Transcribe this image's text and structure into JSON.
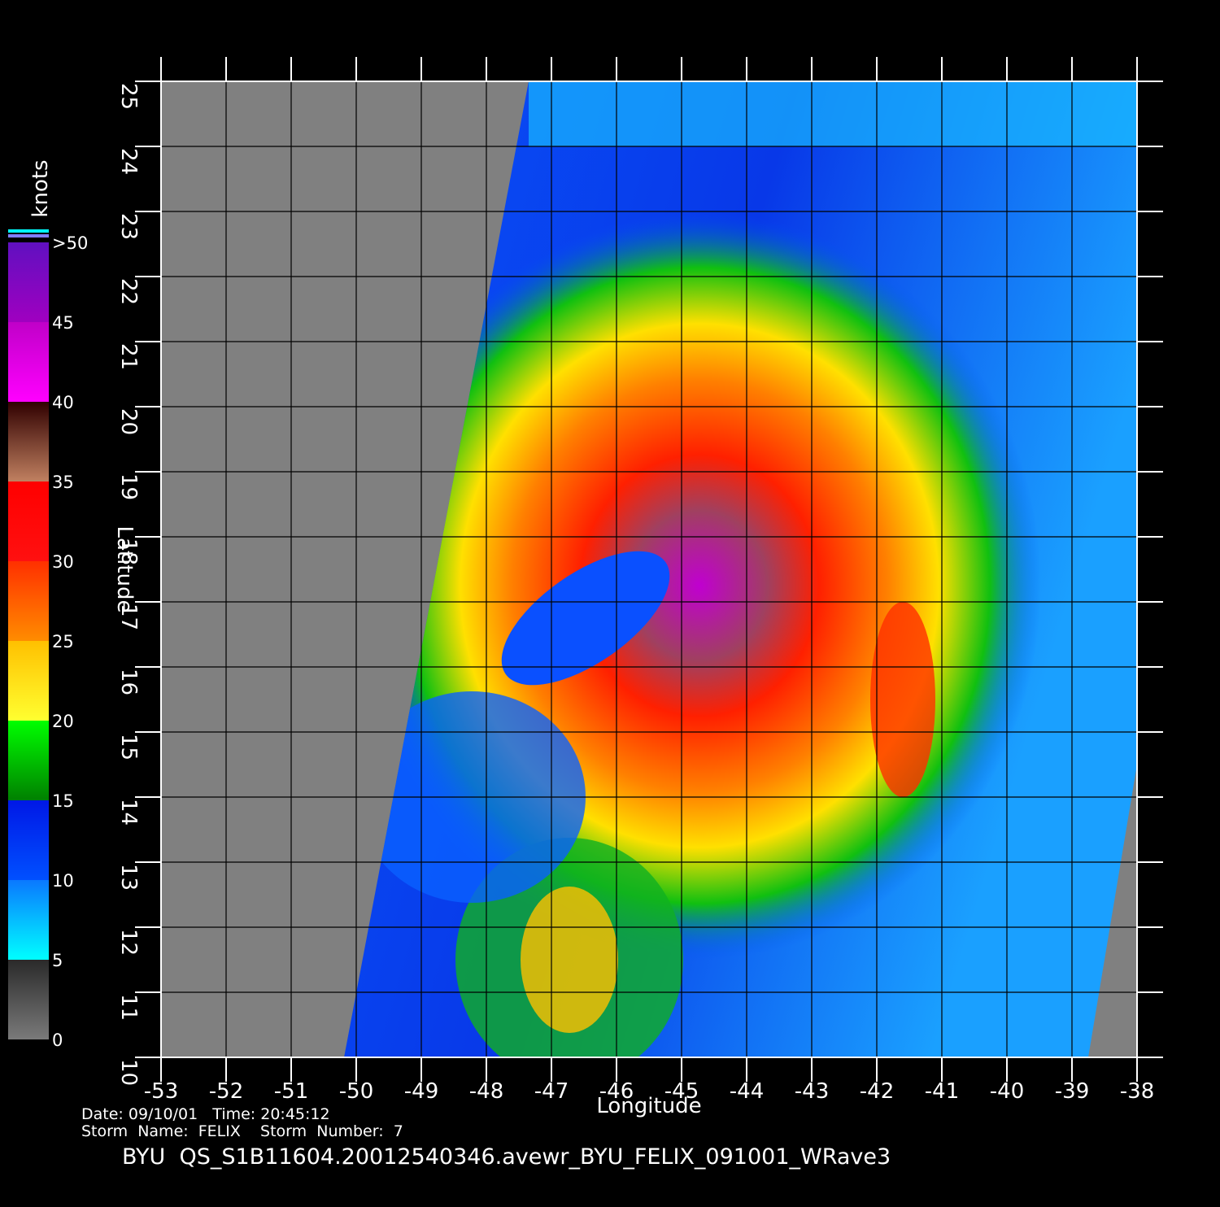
{
  "map": {
    "title": "BYU  QS_S1B11604.20012540346.avewr_BYU_FELIX_091001_WRave3",
    "info": [
      "Date: 09/10/01   Time: 20:45:12",
      "Storm  Name:  FELIX    Storm  Number:  7"
    ],
    "xlabel": "Longitude",
    "ylabel": "Latitude",
    "xlim": [
      -53,
      -38
    ],
    "ylim": [
      10,
      25
    ],
    "xticks": [
      -53,
      -52,
      -51,
      -50,
      -49,
      -48,
      -47,
      -46,
      -45,
      -44,
      -43,
      -42,
      -41,
      -40,
      -39,
      -38
    ],
    "yticks": [
      10,
      11,
      12,
      13,
      14,
      15,
      16,
      17,
      18,
      19,
      20,
      21,
      22,
      23,
      24,
      25
    ],
    "colorbar": {
      "label": "knots",
      "lim": [
        0,
        50
      ],
      "ticks": [
        0,
        5,
        10,
        15,
        20,
        25,
        30,
        35,
        40,
        45,
        {
          "value": 50,
          "label": ">50"
        }
      ]
    }
  }
}
